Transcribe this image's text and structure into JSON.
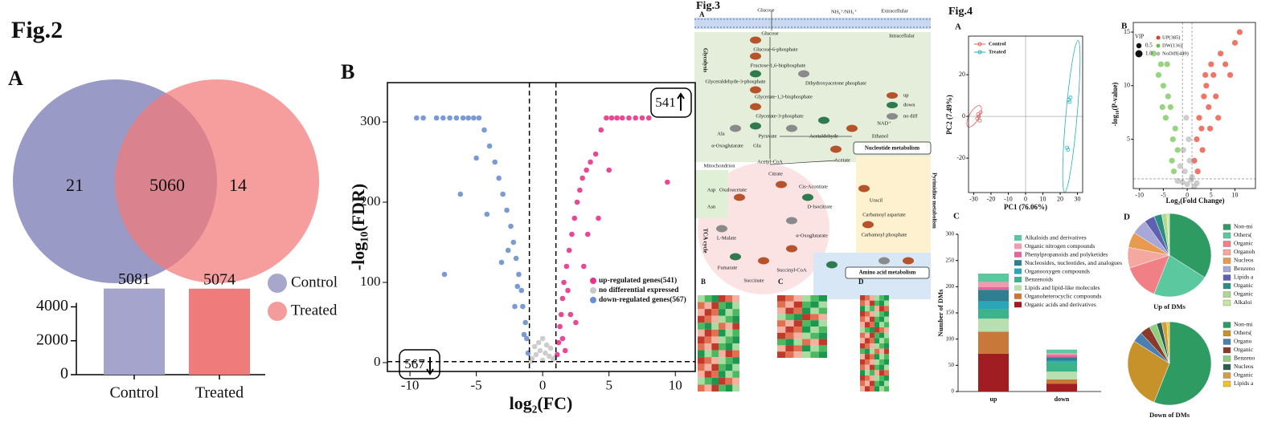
{
  "fig2": {
    "title": "Fig.2",
    "venn": {
      "panel": "A",
      "left_only": 21,
      "overlap": 5060,
      "right_only": 14
    },
    "bar": {
      "type": "bar",
      "categories": [
        "Control",
        "Treated"
      ],
      "values": [
        5081,
        5074
      ],
      "colors": [
        "#a4a4cc",
        "#ef7b7b"
      ],
      "ylim": [
        0,
        5300
      ],
      "yticks": [
        0,
        2000,
        4000
      ]
    },
    "legend": [
      {
        "name": "Control",
        "color": "#a7a7cc"
      },
      {
        "name": "Treated",
        "color": "#f49c9c"
      }
    ],
    "volcano": {
      "panel": "B",
      "type": "scatter",
      "xlabel": "log₂(FC)",
      "ylabel": "-log₁₀(FDR)",
      "xlim": [
        -11.7,
        11.5
      ],
      "ylim": [
        -11,
        349
      ],
      "xticks": [
        -10,
        -5,
        0,
        5,
        10
      ],
      "yticks": [
        0,
        100,
        200,
        300
      ],
      "thresholds_x": [
        -1,
        1
      ],
      "threshold_y": 1.3,
      "up_box": "541",
      "down_box": "567",
      "series": [
        {
          "name": "up-regulated genes(541)",
          "color": "#e8338a",
          "x": [
            1.1,
            1.2,
            1.3,
            1.4,
            1.5,
            1.6,
            1.8,
            2,
            2.2,
            2.4,
            2.6,
            2.8,
            3,
            3.3,
            3.6,
            4,
            4.4,
            4.8,
            5.2,
            5.6,
            6,
            6.5,
            7,
            7.5,
            8,
            9.4,
            1.5,
            2.1,
            3.1,
            1.9,
            4.2,
            5.0,
            1.7,
            2.5,
            3.4
          ],
          "y": [
            10,
            25,
            45,
            60,
            80,
            100,
            120,
            140,
            160,
            180,
            200,
            215,
            230,
            240,
            250,
            260,
            290,
            305,
            305,
            305,
            305,
            305,
            305,
            305,
            305,
            225,
            30,
            60,
            120,
            90,
            180,
            240,
            15,
            50,
            160
          ]
        },
        {
          "name": "no differential expressed",
          "color": "#c8c8c8",
          "x": [
            -0.8,
            -0.5,
            -0.2,
            0,
            0.2,
            0.5,
            0.8,
            -0.6,
            0.6,
            -0.3,
            0.3,
            0,
            -0.9,
            0.9
          ],
          "y": [
            5,
            10,
            15,
            3,
            12,
            8,
            4,
            20,
            18,
            25,
            22,
            30,
            2,
            6
          ]
        },
        {
          "name": "down-regulated genes(567)",
          "color": "#6a8fd0",
          "x": [
            -1.1,
            -1.2,
            -1.3,
            -1.5,
            -1.6,
            -1.8,
            -2,
            -2.2,
            -2.4,
            -2.7,
            -3,
            -3.3,
            -3.6,
            -4,
            -4.4,
            -4.8,
            -5.2,
            -5.6,
            -6,
            -6.5,
            -7,
            -7.5,
            -8,
            -9,
            -9.5,
            -1.4,
            -2.1,
            -3.1,
            -1.9,
            -4.2,
            -5,
            -6.2,
            -7.4,
            -2.6
          ],
          "y": [
            12,
            30,
            50,
            70,
            90,
            110,
            130,
            150,
            170,
            190,
            210,
            230,
            250,
            270,
            290,
            305,
            305,
            305,
            305,
            305,
            305,
            305,
            305,
            305,
            305,
            35,
            70,
            125,
            95,
            185,
            255,
            210,
            110,
            140
          ]
        }
      ]
    }
  },
  "fig3": {
    "title": "Fig.3",
    "panel_a": "A",
    "panel_b": "B",
    "panel_c": "C",
    "panel_d": "D",
    "labels": [
      "Extracellular",
      "Intracellular",
      "Glucose",
      "Glucose",
      "Glucose-6-phosphate",
      "Fructose-1,6-bisphosphate",
      "Glyceraldehyde-3-phosphate",
      "Dihydroxyacetone phosphate",
      "Glycerate-1,3-bisphosphate",
      "Glycerate-3-phosphate",
      "Pyruvate",
      "Ala",
      "α-Oxoglutarate",
      "Glu",
      "Acetaldehyde",
      "Ethanol",
      "NAD⁺",
      "Acetate",
      "Acetyl-CoA",
      "Mitochondrion",
      "Citrate",
      "Cis-Aconitate",
      "D-Isocitrate",
      "α-Oxoglutarate",
      "Succinyl-CoA",
      "Succinate",
      "Fumarate",
      "L-Malate",
      "Oxaloacetate",
      "Asp",
      "Asn",
      "Nucleotide metabolism",
      "Uracil",
      "Carbamoyl aspartate",
      "Carbamoyl phosphate",
      "Amino acid metabolism",
      "up",
      "down",
      "no diff",
      "Glycolysis",
      "TCA cycle",
      "Pyrimidine metabolism",
      "NH₄⁺/NH₃⁺"
    ]
  },
  "fig4": {
    "title": "Fig.4",
    "pca": {
      "panel": "A",
      "type": "scatter",
      "xlabel": "PC1 (76.06%)",
      "ylabel": "PC2 (7.49%)",
      "xlim": [
        -33,
        33
      ],
      "ylim": [
        -36.5,
        38.5
      ],
      "xticks": [
        -30,
        -20,
        -10,
        0,
        10,
        20,
        30
      ],
      "yticks": [
        -20,
        0,
        20
      ],
      "series": [
        {
          "name": "Control",
          "color": "#e06060",
          "x": [
            -28,
            -27,
            -26,
            -27.5,
            -26.5
          ],
          "y": [
            -1,
            0,
            2,
            1,
            -2
          ]
        },
        {
          "name": "Treated",
          "color": "#20b2c0",
          "x": [
            24,
            25,
            26,
            25.5,
            24.5
          ],
          "y": [
            -15,
            8,
            9,
            7,
            -16
          ]
        }
      ]
    },
    "volcano": {
      "panel": "B",
      "type": "scatter",
      "xlabel": "Log₂(Fold Change)",
      "ylabel": "-log₁₀(P-value)",
      "xlim": [
        -11.3,
        14.3
      ],
      "ylim": [
        0.4,
        15.9
      ],
      "xticks": [
        -10,
        -5,
        0,
        5,
        10
      ],
      "yticks": [
        5,
        10,
        15
      ],
      "thresholds_x": [
        -1,
        1
      ],
      "threshold_y": 1.3,
      "legend_title": "VIP",
      "vip_sizes": [
        0.5,
        {
          "value": 1,
          "label": "1.0"
        }
      ],
      "series": [
        {
          "name": "UP(385)",
          "color": "#e83a2a",
          "x": [
            1.5,
            2,
            2.5,
            3,
            3.5,
            4,
            4.5,
            5,
            5.5,
            6,
            7,
            8,
            9,
            10,
            11,
            2.2,
            3.2,
            4.8,
            6.5,
            3.8
          ],
          "y": [
            3,
            5,
            7,
            6,
            9,
            10,
            8,
            12,
            11,
            9,
            13,
            12,
            11,
            14,
            15,
            2,
            4,
            6,
            7,
            11
          ]
        },
        {
          "name": "DW(136)",
          "color": "#6cc04a",
          "x": [
            -2,
            -2.5,
            -3,
            -3.5,
            -4,
            -4.5,
            -5,
            -5.5,
            -6,
            -7,
            -3.2,
            -4.2,
            -5.2,
            -2.8
          ],
          "y": [
            4,
            6,
            5,
            8,
            9,
            7,
            10,
            12,
            11,
            13,
            3,
            12,
            8,
            2
          ]
        },
        {
          "name": "NoDiff(449)",
          "color": "#b8b8b8",
          "x": [
            -1,
            -0.5,
            0,
            0.5,
            1,
            -1.5,
            1.5,
            -0.8,
            0.3,
            0.8,
            -0.2,
            2,
            -2
          ],
          "y": [
            1,
            2,
            0.8,
            3,
            1.5,
            2.5,
            0.6,
            4,
            5,
            1.2,
            7,
            0.9,
            1.1
          ]
        }
      ]
    },
    "stack": {
      "panel": "C",
      "type": "stacked_bar",
      "ylabel": "Number of DMs",
      "categories": [
        "up",
        "down"
      ],
      "ylim": [
        0,
        300
      ],
      "yticks": [
        0,
        50,
        100,
        150,
        200,
        250,
        300
      ],
      "series": [
        {
          "name": "Alkaloids and derivatives",
          "color": "#5cc8a0",
          "values": [
            16,
            7
          ]
        },
        {
          "name": "Organic nitrogen compounds",
          "color": "#f49ab0",
          "values": [
            10,
            3
          ]
        },
        {
          "name": "Phenylpropanoids and polyketides",
          "color": "#e0679a",
          "values": [
            5,
            5
          ]
        },
        {
          "name": "Nucleosides, nucleotides, and analogues",
          "color": "#2e7f8f",
          "values": [
            22,
            6
          ]
        },
        {
          "name": "Organooxygen compounds",
          "color": "#2aa6b8",
          "values": [
            15,
            3
          ]
        },
        {
          "name": "Benzenoids",
          "color": "#3cb38a",
          "values": [
            18,
            18
          ]
        },
        {
          "name": "Lipids and lipid-like molecules",
          "color": "#b7dfb0",
          "values": [
            25,
            15
          ]
        },
        {
          "name": "Organoheterocyclic compounds",
          "color": "#c8793a",
          "values": [
            42,
            8
          ]
        },
        {
          "name": "Organic acids and derivatives",
          "color": "#a01e22",
          "values": [
            72,
            15
          ]
        }
      ]
    },
    "pies": {
      "panel": "D",
      "charts": [
        {
          "type": "pie",
          "title": "Up of DMs",
          "labels": [
            "Non-mi",
            "Others(",
            "Organic",
            "Organoh",
            "Nucleos",
            "Benzeno",
            "Lipids a",
            "Organic",
            "Organic",
            "Alkaloi"
          ],
          "values": [
            34,
            22,
            14,
            8,
            6,
            6,
            4,
            3,
            2,
            1
          ],
          "colors": [
            "#2e9b63",
            "#5cc8a0",
            "#f07f86",
            "#f4a8a0",
            "#e89a50",
            "#a8a8d8",
            "#6060b0",
            "#2a8f7f",
            "#b0d890",
            "#c8e6a0"
          ]
        },
        {
          "type": "pie",
          "title": "Down of DMs",
          "labels": [
            "Non-mi",
            "Others(",
            "Organo",
            "Organic",
            "Benzeno",
            "Nucleos",
            "Organic",
            "Lipids a"
          ],
          "values": [
            56,
            28,
            4,
            4,
            3,
            2,
            2,
            1
          ],
          "colors": [
            "#2e9b63",
            "#c8922a",
            "#4a7fb0",
            "#8a3a2a",
            "#8fce7f",
            "#2a5f4f",
            "#d0a040",
            "#f0c030"
          ]
        }
      ]
    }
  }
}
